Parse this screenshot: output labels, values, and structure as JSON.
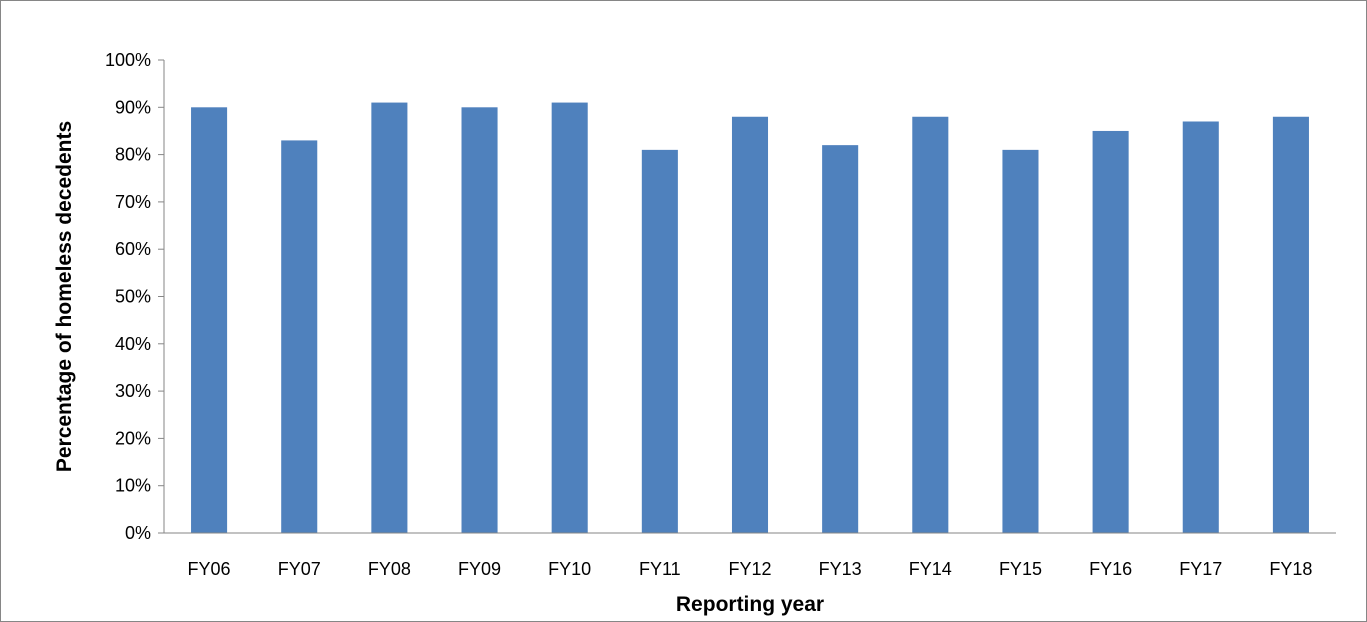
{
  "chart_data": {
    "type": "bar",
    "title": "",
    "xlabel": "Reporting year",
    "ylabel": "Percentage of homeless decedents",
    "categories": [
      "FY06",
      "FY07",
      "FY08",
      "FY09",
      "FY10",
      "FY11",
      "FY12",
      "FY13",
      "FY14",
      "FY15",
      "FY16",
      "FY17",
      "FY18"
    ],
    "values": [
      90,
      83,
      91,
      90,
      91,
      81,
      88,
      82,
      88,
      81,
      85,
      87,
      88
    ],
    "ylim": [
      0,
      100
    ],
    "ytick_step": 10,
    "ytick_format": "percent",
    "grid": false,
    "legend": "none",
    "bar_color": "#4f81bd",
    "axis_color": "#868686"
  }
}
